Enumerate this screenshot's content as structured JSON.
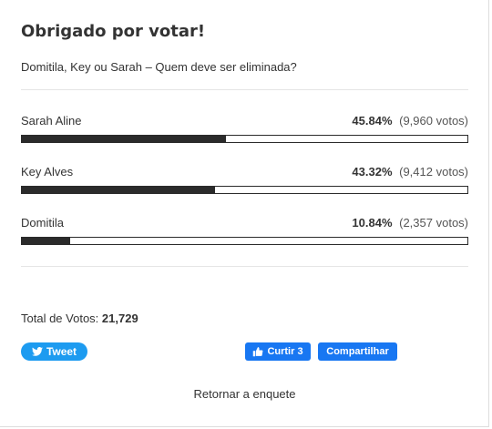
{
  "poll": {
    "title": "Obrigado por votar!",
    "question": "Domitila, Key ou Sarah – Quem deve ser eliminada?",
    "answers": [
      {
        "label": "Sarah Aline",
        "percent": "45.84%",
        "votes": "(9,960 votos)",
        "fraction": 0.4584
      },
      {
        "label": "Key Alves",
        "percent": "43.32%",
        "votes": "(9,412 votos)",
        "fraction": 0.4332
      },
      {
        "label": "Domitila",
        "percent": "10.84%",
        "votes": "(2,357 votos)",
        "fraction": 0.1084
      }
    ],
    "total_label": "Total de Votos:",
    "total_count": "21,729",
    "bar_color": "#2b2b2b"
  },
  "share": {
    "tweet_label": "Tweet",
    "tweet_color": "#1d9bf0",
    "like_label": "Curtir 3",
    "share_label": "Compartilhar",
    "facebook_color": "#1877f2",
    "tweet_icon": "twitter-bird-icon",
    "like_icon": "thumbs-up-icon"
  },
  "footer": {
    "return_label": "Retornar a enquete"
  }
}
